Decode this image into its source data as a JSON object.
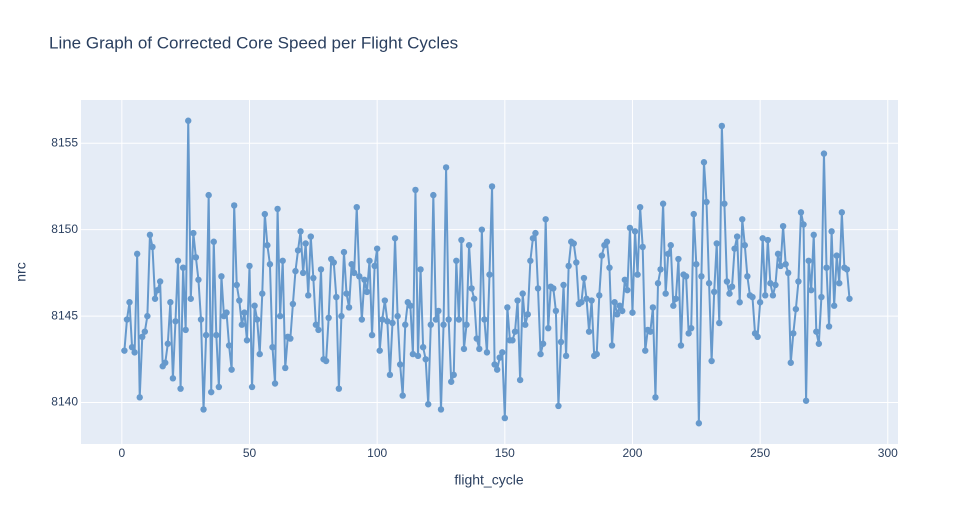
{
  "chart_data": {
    "type": "line",
    "title": "Line Graph of Corrected Core Speed per Flight Cycles",
    "x_label": "flight_cycle",
    "y_label": "nrc",
    "x": [
      1,
      2,
      3,
      4,
      5,
      6,
      7,
      8,
      9,
      10,
      11,
      12,
      13,
      14,
      15,
      16,
      17,
      18,
      19,
      20,
      21,
      22,
      23,
      24,
      25,
      26,
      27,
      28,
      29,
      30,
      31,
      32,
      33,
      34,
      35,
      36,
      37,
      38,
      39,
      40,
      41,
      42,
      43,
      44,
      45,
      46,
      47,
      48,
      49,
      50,
      51,
      52,
      53,
      54,
      55,
      56,
      57,
      58,
      59,
      60,
      61,
      62,
      63,
      64,
      65,
      66,
      67,
      68,
      69,
      70,
      71,
      72,
      73,
      74,
      75,
      76,
      77,
      78,
      79,
      80,
      81,
      82,
      83,
      84,
      85,
      86,
      87,
      88,
      89,
      90,
      91,
      92,
      93,
      94,
      95,
      96,
      97,
      98,
      99,
      100,
      101,
      102,
      103,
      104,
      105,
      106,
      107,
      108,
      109,
      110,
      111,
      112,
      113,
      114,
      115,
      116,
      117,
      118,
      119,
      120,
      121,
      122,
      123,
      124,
      125,
      126,
      127,
      128,
      129,
      130,
      131,
      132,
      133,
      134,
      135,
      136,
      137,
      138,
      139,
      140,
      141,
      142,
      143,
      144,
      145,
      146,
      147,
      148,
      149,
      150,
      151,
      152,
      153,
      154,
      155,
      156,
      157,
      158,
      159,
      160,
      161,
      162,
      163,
      164,
      165,
      166,
      167,
      168,
      169,
      170,
      171,
      172,
      173,
      174,
      175,
      176,
      177,
      178,
      179,
      180,
      181,
      182,
      183,
      184,
      185,
      186,
      187,
      188,
      189,
      190,
      191,
      192,
      193,
      194,
      195,
      196,
      197,
      198,
      199,
      200,
      201,
      202,
      203,
      204,
      205,
      206,
      207,
      208,
      209,
      210,
      211,
      212,
      213,
      214,
      215,
      216,
      217,
      218,
      219,
      220,
      221,
      222,
      223,
      224,
      225,
      226,
      227,
      228,
      229,
      230,
      231,
      232,
      233,
      234,
      235,
      236,
      237,
      238,
      239,
      240,
      241,
      242,
      243,
      244,
      245,
      246,
      247,
      248,
      249,
      250,
      251,
      252,
      253,
      254,
      255,
      256,
      257,
      258,
      259,
      260,
      261,
      262,
      263,
      264,
      265,
      266,
      267,
      268,
      269,
      270,
      271,
      272,
      273,
      274,
      275,
      276,
      277,
      278,
      279,
      280,
      281,
      282,
      283,
      284,
      285
    ],
    "series": [
      {
        "color": "#6699cc",
        "values": [
          8143.0,
          8144.8,
          8145.8,
          8143.2,
          8142.9,
          8148.6,
          8140.3,
          8143.8,
          8144.1,
          8145.0,
          8149.7,
          8149.0,
          8146.0,
          8146.5,
          8147.0,
          8142.1,
          8142.3,
          8143.4,
          8145.8,
          8141.4,
          8144.7,
          8148.2,
          8140.8,
          8147.8,
          8144.2,
          8156.3,
          8146.0,
          8149.8,
          8148.4,
          8147.1,
          8144.8,
          8139.6,
          8143.9,
          8152.0,
          8140.6,
          8149.3,
          8143.9,
          8140.9,
          8147.3,
          8145.0,
          8145.2,
          8143.3,
          8141.9,
          8151.4,
          8146.8,
          8145.9,
          8144.5,
          8145.2,
          8143.6,
          8147.9,
          8140.9,
          8145.6,
          8144.8,
          8142.8,
          8146.3,
          8150.9,
          8149.1,
          8148.0,
          8143.2,
          8141.1,
          8151.2,
          8145.0,
          8148.2,
          8142.0,
          8143.8,
          8143.7,
          8145.7,
          8147.6,
          8148.8,
          8149.9,
          8147.5,
          8149.2,
          8146.2,
          8149.6,
          8147.2,
          8144.5,
          8144.2,
          8147.7,
          8142.5,
          8142.4,
          8144.9,
          8148.3,
          8148.1,
          8146.1,
          8140.8,
          8145.0,
          8148.7,
          8146.3,
          8145.5,
          8148.0,
          8147.5,
          8151.3,
          8147.3,
          8144.8,
          8147.1,
          8146.4,
          8148.2,
          8143.9,
          8147.9,
          8148.9,
          8143.0,
          8144.8,
          8145.9,
          8144.7,
          8141.6,
          8144.6,
          8149.5,
          8145.0,
          8142.2,
          8140.4,
          8144.5,
          8145.8,
          8145.6,
          8142.8,
          8152.3,
          8142.7,
          8147.7,
          8143.2,
          8142.5,
          8139.9,
          8144.5,
          8152.0,
          8144.8,
          8145.3,
          8139.6,
          8144.5,
          8153.6,
          8144.8,
          8141.2,
          8141.6,
          8148.2,
          8144.8,
          8149.4,
          8143.1,
          8144.5,
          8149.1,
          8146.6,
          8146.0,
          8143.7,
          8143.1,
          8150.0,
          8144.8,
          8142.9,
          8147.4,
          8152.5,
          8142.2,
          8141.9,
          8142.6,
          8142.9,
          8139.1,
          8145.5,
          8143.6,
          8143.6,
          8144.1,
          8145.9,
          8141.3,
          8146.3,
          8144.5,
          8145.1,
          8148.2,
          8149.5,
          8149.8,
          8146.6,
          8142.8,
          8143.4,
          8150.6,
          8144.3,
          8146.7,
          8146.6,
          8145.3,
          8139.8,
          8143.5,
          8146.8,
          8142.7,
          8147.9,
          8149.3,
          8149.2,
          8148.1,
          8145.7,
          8145.8,
          8147.2,
          8146.0,
          8144.1,
          8145.9,
          8142.7,
          8142.8,
          8146.2,
          8148.5,
          8149.1,
          8149.3,
          8147.8,
          8143.3,
          8145.8,
          8145.1,
          8145.6,
          8145.3,
          8147.1,
          8146.5,
          8150.1,
          8145.2,
          8149.9,
          8147.4,
          8151.3,
          8149.0,
          8143.0,
          8144.2,
          8144.1,
          8145.5,
          8140.3,
          8146.9,
          8147.7,
          8151.5,
          8146.3,
          8148.6,
          8149.1,
          8145.6,
          8146.0,
          8148.3,
          8143.3,
          8147.4,
          8147.3,
          8144.0,
          8144.3,
          8150.9,
          8148.0,
          8138.8,
          8147.3,
          8153.9,
          8151.6,
          8146.9,
          8142.4,
          8146.4,
          8149.2,
          8144.6,
          8156.0,
          8151.5,
          8147.0,
          8146.3,
          8146.7,
          8148.9,
          8149.6,
          8145.8,
          8150.6,
          8149.1,
          8147.3,
          8146.2,
          8146.1,
          8144.0,
          8143.8,
          8145.8,
          8149.5,
          8146.2,
          8149.4,
          8146.9,
          8146.2,
          8146.8,
          8148.6,
          8147.9,
          8150.2,
          8148.0,
          8147.5,
          8142.3,
          8144.0,
          8145.4,
          8147.0,
          8151.0,
          8150.3,
          8140.1,
          8148.2,
          8146.5,
          8149.7,
          8144.1,
          8143.4,
          8146.1,
          8154.4,
          8147.8,
          8144.4,
          8149.9,
          8145.6,
          8148.5,
          8146.9,
          8151.0,
          8147.8,
          8147.7,
          8146.0
        ]
      }
    ],
    "xlim": [
      -16,
      304
    ],
    "xticks": [
      0,
      50,
      100,
      150,
      200,
      250,
      300
    ],
    "ylim": [
      8137.6,
      8157.5
    ],
    "yticks": [
      8140,
      8145,
      8150,
      8155
    ],
    "grid": true
  }
}
